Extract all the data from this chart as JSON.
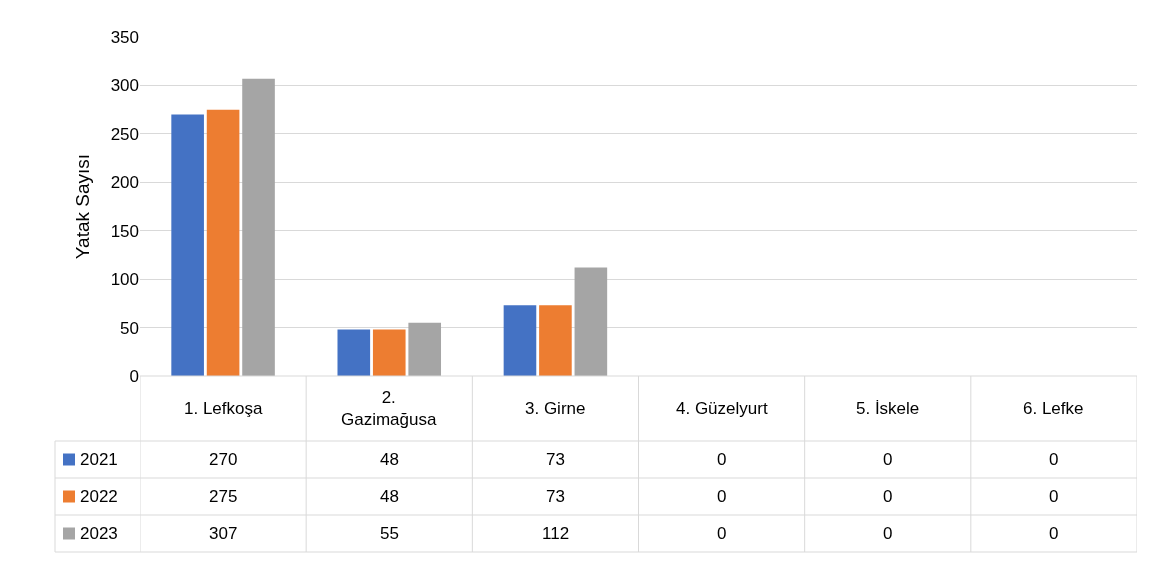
{
  "chart_data": {
    "type": "bar",
    "ylabel": "Yatak Sayısı",
    "categories": [
      "1. Lefkoşa",
      "2. Gazimağusa",
      "3. Girne",
      "4. Güzelyurt",
      "5. İskele",
      "6. Lefke"
    ],
    "series": [
      {
        "name": "2021",
        "color": "#4472c4",
        "values": [
          270,
          48,
          73,
          0,
          0,
          0
        ]
      },
      {
        "name": "2022",
        "color": "#ed7d31",
        "values": [
          275,
          48,
          73,
          0,
          0,
          0
        ]
      },
      {
        "name": "2023",
        "color": "#a5a5a5",
        "values": [
          307,
          55,
          112,
          0,
          0,
          0
        ]
      }
    ],
    "ylim": [
      0,
      350
    ],
    "yticks": [
      0,
      50,
      100,
      150,
      200,
      250,
      300,
      350
    ],
    "grid": "y",
    "legend": "bottom",
    "data_labels": true
  }
}
